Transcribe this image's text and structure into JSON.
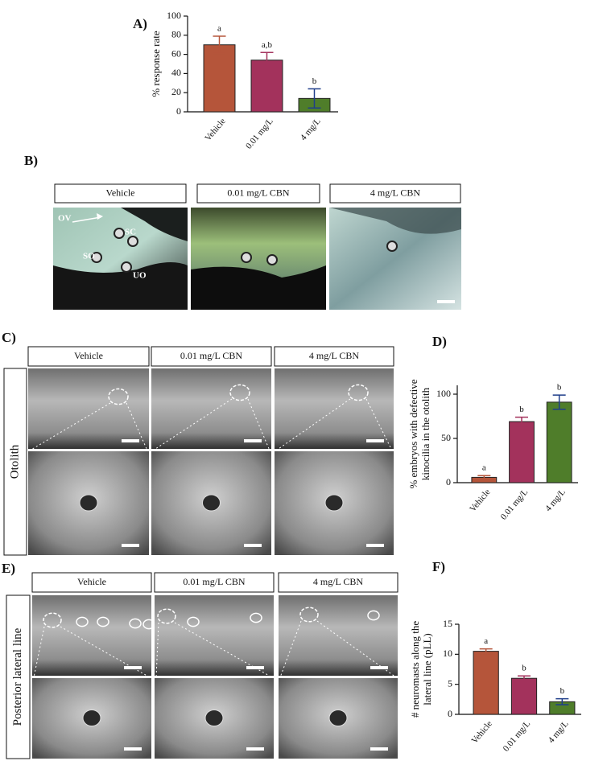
{
  "chart_data": [
    {
      "type": "bar",
      "panel": "A)",
      "ylabel": "% response rate",
      "categories": [
        "Vehicle",
        "0.01 mg/L",
        "4 mg/L"
      ],
      "values": [
        70,
        54,
        14
      ],
      "errors": [
        9,
        8,
        10
      ],
      "annotations": [
        "a",
        "a,b",
        "b"
      ],
      "colors": [
        "#b5553a",
        "#a3325c",
        "#4f7d2a"
      ],
      "ylim": [
        0,
        100
      ],
      "yticks": [
        0,
        20,
        40,
        60,
        80,
        100
      ]
    },
    {
      "type": "bar",
      "panel": "D)",
      "ylabel": [
        "% embryos with defective",
        "kinocilia in the otolith"
      ],
      "categories": [
        "Vehicle",
        "0.01 mg/L",
        "4 mg/L"
      ],
      "values": [
        6,
        69,
        91
      ],
      "errors": [
        2,
        5,
        8
      ],
      "annotations": [
        "a",
        "b",
        "b"
      ],
      "colors": [
        "#b5553a",
        "#a3325c",
        "#4f7d2a"
      ],
      "ylim": [
        0,
        110
      ],
      "yticks": [
        0,
        50,
        100
      ]
    },
    {
      "type": "bar",
      "panel": "F)",
      "ylabel": [
        "# neuromasts along the",
        "lateral line (pLL)"
      ],
      "categories": [
        "Vehicle",
        "0.01 mg/L",
        "4 mg/L"
      ],
      "values": [
        10.5,
        6,
        2.1
      ],
      "errors": [
        0.4,
        0.4,
        0.5
      ],
      "annotations": [
        "a",
        "b",
        "b"
      ],
      "colors": [
        "#b5553a",
        "#a3325c",
        "#4f7d2a"
      ],
      "ylim": [
        0,
        15
      ],
      "yticks": [
        0,
        5,
        10,
        15
      ]
    }
  ],
  "panel_B": {
    "label": "B)",
    "headers": [
      "Vehicle",
      "0.01 mg/L CBN",
      "4 mg/L CBN"
    ],
    "annotations": [
      "OV",
      "SC",
      "SO",
      "UO"
    ]
  },
  "panel_C": {
    "label": "C)",
    "headers": [
      "Vehicle",
      "0.01 mg/L CBN",
      "4 mg/L CBN"
    ],
    "side_label": "Otolith"
  },
  "panel_E": {
    "label": "E)",
    "headers": [
      "Vehicle",
      "0.01 mg/L CBN",
      "4 mg/L CBN"
    ],
    "side_label": "Posterior lateral line"
  }
}
